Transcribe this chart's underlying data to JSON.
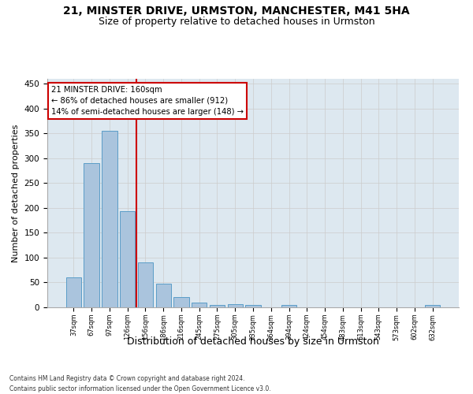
{
  "title1": "21, MINSTER DRIVE, URMSTON, MANCHESTER, M41 5HA",
  "title2": "Size of property relative to detached houses in Urmston",
  "xlabel": "Distribution of detached houses by size in Urmston",
  "ylabel": "Number of detached properties",
  "bin_labels": [
    "37sqm",
    "67sqm",
    "97sqm",
    "126sqm",
    "156sqm",
    "186sqm",
    "216sqm",
    "245sqm",
    "275sqm",
    "305sqm",
    "335sqm",
    "364sqm",
    "394sqm",
    "424sqm",
    "454sqm",
    "483sqm",
    "513sqm",
    "543sqm",
    "573sqm",
    "602sqm",
    "632sqm"
  ],
  "bar_values": [
    60,
    290,
    355,
    193,
    91,
    47,
    20,
    9,
    5,
    6,
    5,
    0,
    5,
    0,
    0,
    0,
    0,
    0,
    0,
    0,
    5
  ],
  "bar_color": "#aac4dd",
  "bar_edgecolor": "#5a9dc8",
  "grid_color": "#cccccc",
  "vline_bin": 4,
  "vline_color": "#cc0000",
  "annotation_line1": "21 MINSTER DRIVE: 160sqm",
  "annotation_line2": "← 86% of detached houses are smaller (912)",
  "annotation_line3": "14% of semi-detached houses are larger (148) →",
  "annotation_box_color": "#cc0000",
  "footnote_line1": "Contains HM Land Registry data © Crown copyright and database right 2024.",
  "footnote_line2": "Contains public sector information licensed under the Open Government Licence v3.0.",
  "ylim": [
    0,
    460
  ],
  "background_color": "#dde8f0",
  "title1_fontsize": 10,
  "title2_fontsize": 9,
  "xlabel_fontsize": 9,
  "ylabel_fontsize": 8
}
